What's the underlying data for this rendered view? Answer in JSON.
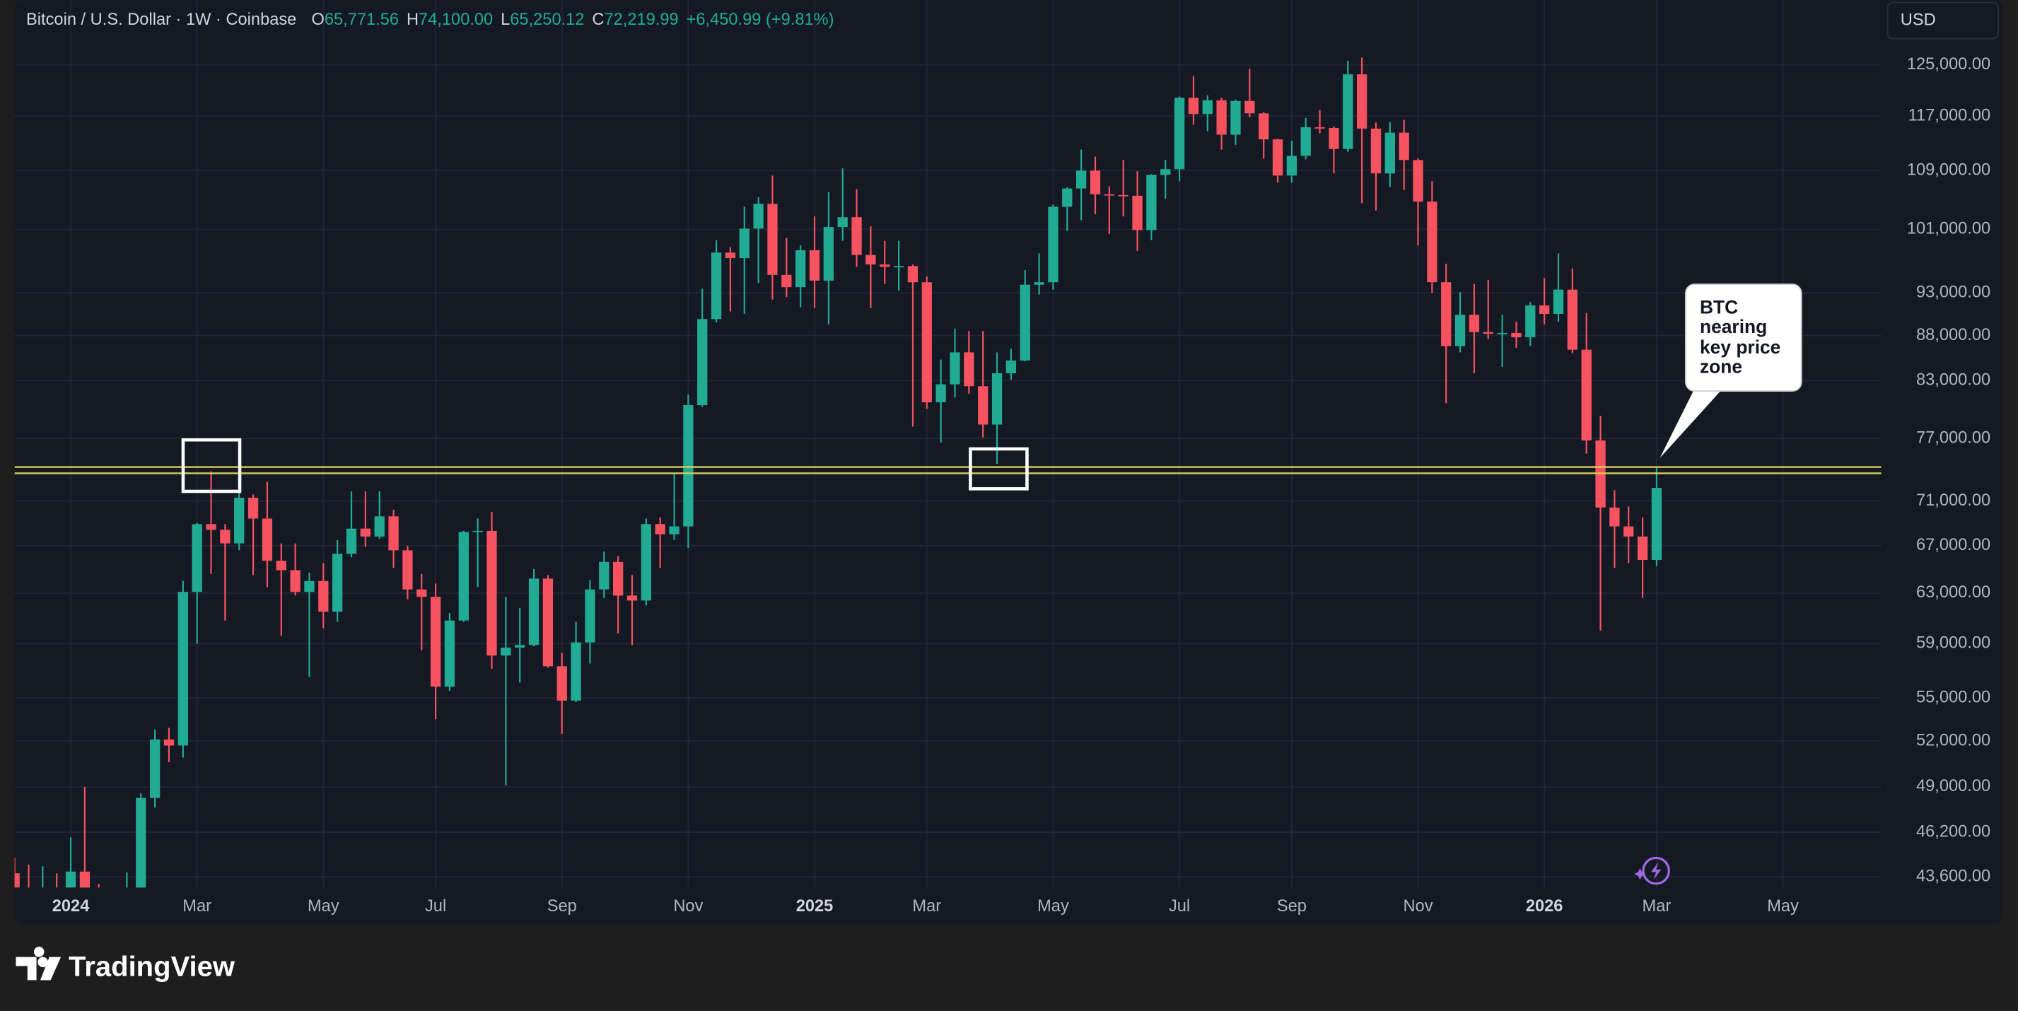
{
  "chart_data": {
    "type": "candlestick",
    "header": {
      "symbol": "Bitcoin / U.S. Dollar · 1W · Coinbase",
      "ohlc": [
        {
          "label": "O",
          "value": "65,771.56"
        },
        {
          "label": "H",
          "value": "74,100.00"
        },
        {
          "label": "L",
          "value": "65,250.12"
        },
        {
          "label": "C",
          "value": "72,219.99"
        }
      ],
      "change": "+6,450.99 (+9.81%)"
    },
    "currency": "USD",
    "annotation": [
      "BTC",
      "nearing",
      "key price",
      "zone"
    ],
    "brand": "TradingView",
    "log_scale": true,
    "grid": true,
    "up_color": "#22ab94",
    "down_color": "#f7525f",
    "level_color": "#d8cf55",
    "levels": [
      74200,
      73600
    ],
    "xlim": [
      0,
      133
    ],
    "xticks": [
      {
        "value": 4,
        "label": "2024"
      },
      {
        "value": 13,
        "label": "Mar"
      },
      {
        "value": 22,
        "label": "May"
      },
      {
        "value": 30,
        "label": "Jul"
      },
      {
        "value": 39,
        "label": "Sep"
      },
      {
        "value": 48,
        "label": "Nov"
      },
      {
        "value": 57,
        "label": "2025"
      },
      {
        "value": 65,
        "label": "Mar"
      },
      {
        "value": 74,
        "label": "May"
      },
      {
        "value": 83,
        "label": "Jul"
      },
      {
        "value": 91,
        "label": "Sep"
      },
      {
        "value": 100,
        "label": "Nov"
      },
      {
        "value": 109,
        "label": "2026"
      },
      {
        "value": 117,
        "label": "Mar"
      },
      {
        "value": 126,
        "label": "May"
      }
    ],
    "ylim": [
      43000,
      136000
    ],
    "yticks": [
      {
        "value": 125000,
        "label": "125,000.00"
      },
      {
        "value": 117000,
        "label": "117,000.00"
      },
      {
        "value": 109000,
        "label": "109,000.00"
      },
      {
        "value": 101000,
        "label": "101,000.00"
      },
      {
        "value": 93000,
        "label": "93,000.00"
      },
      {
        "value": 88000,
        "label": "88,000.00"
      },
      {
        "value": 83000,
        "label": "83,000.00"
      },
      {
        "value": 77000,
        "label": "77,000.00"
      },
      {
        "value": 71000,
        "label": "71,000.00"
      },
      {
        "value": 67000,
        "label": "67,000.00"
      },
      {
        "value": 63000,
        "label": "63,000.00"
      },
      {
        "value": 59000,
        "label": "59,000.00"
      },
      {
        "value": 55000,
        "label": "55,000.00"
      },
      {
        "value": 52000,
        "label": "52,000.00"
      },
      {
        "value": 49000,
        "label": "49,000.00"
      },
      {
        "value": 46200,
        "label": "46,200.00"
      },
      {
        "value": 43600,
        "label": "43,600.00"
      }
    ],
    "open": [
      43800,
      43000,
      42300,
      43000,
      42300,
      43900,
      41700,
      41600,
      42000,
      42600,
      48300,
      52100,
      51700,
      63100,
      68900,
      68400,
      67200,
      71300,
      69400,
      65700,
      64900,
      63100,
      64000,
      61500,
      66300,
      68500,
      67800,
      69600,
      66600,
      63300,
      62700,
      55800,
      60800,
      68200,
      68300,
      58100,
      58700,
      58900,
      64200,
      57300,
      54800,
      59100,
      63300,
      65600,
      62800,
      62400,
      68900,
      68000,
      68700,
      80400,
      89900,
      98000,
      97300,
      101100,
      104400,
      95200,
      93700,
      98300,
      94500,
      101300,
      102600,
      97700,
      96500,
      96200,
      96300,
      94300,
      80700,
      82600,
      86100,
      82400,
      78400,
      83800,
      85200,
      94000,
      94300,
      104000,
      106500,
      109000,
      105700,
      105600,
      105500,
      100900,
      108400,
      109200,
      119800,
      117300,
      119400,
      114200,
      119300,
      117400,
      113500,
      108300,
      111100,
      115300,
      115200,
      112100,
      123500,
      115100,
      108600,
      114500,
      110500,
      104700,
      94300,
      86800,
      90400,
      88400,
      88200,
      88300,
      87800,
      91500,
      90500,
      93400,
      86400,
      76800,
      70400,
      68700,
      67800,
      65771.56
    ],
    "high": [
      44700,
      44300,
      44200,
      43800,
      45900,
      49000,
      43200,
      42200,
      43850,
      48600,
      52800,
      52900,
      64000,
      69000,
      73800,
      68900,
      71800,
      71600,
      72800,
      67200,
      67200,
      64700,
      65500,
      67500,
      71900,
      71900,
      71900,
      70200,
      67000,
      64600,
      63800,
      61400,
      68300,
      69400,
      70000,
      62700,
      61800,
      65000,
      64500,
      58300,
      60700,
      64100,
      66500,
      66100,
      64500,
      69400,
      69500,
      73600,
      81500,
      93500,
      99600,
      98700,
      104000,
      105300,
      108300,
      99900,
      98900,
      102700,
      106000,
      109300,
      106400,
      101400,
      99500,
      99500,
      96500,
      95000,
      85300,
      88800,
      88500,
      88500,
      86100,
      86500,
      95800,
      97900,
      104300,
      106700,
      112000,
      111000,
      106800,
      110500,
      108900,
      108500,
      110500,
      120000,
      123200,
      120200,
      119800,
      119500,
      124400,
      117600,
      113600,
      113300,
      116700,
      117900,
      115400,
      125700,
      126200,
      116000,
      116100,
      116400,
      110700,
      107500,
      96600,
      93100,
      94100,
      94600,
      90400,
      89600,
      91900,
      94800,
      97900,
      96000,
      90600,
      79300,
      72000,
      70500,
      69500,
      74100
    ],
    "low": [
      40200,
      40600,
      40800,
      41500,
      40800,
      41500,
      40600,
      38500,
      41800,
      42300,
      47700,
      50600,
      50900,
      59000,
      64600,
      60800,
      66600,
      64500,
      63500,
      59600,
      62800,
      56500,
      60200,
      60700,
      66000,
      66900,
      67600,
      65100,
      62500,
      58500,
      53500,
      55500,
      60700,
      63500,
      57100,
      49100,
      56100,
      58800,
      57200,
      52500,
      54700,
      57500,
      62600,
      59800,
      58900,
      62000,
      65100,
      67500,
      66800,
      80200,
      89500,
      90800,
      90500,
      94200,
      92200,
      92500,
      91300,
      91200,
      89300,
      99500,
      96200,
      91200,
      94100,
      93300,
      78200,
      80000,
      76600,
      81200,
      81600,
      77100,
      74500,
      83100,
      85100,
      92800,
      93400,
      100800,
      102200,
      103000,
      100400,
      102700,
      98200,
      99600,
      105100,
      107500,
      115700,
      114700,
      112000,
      112700,
      116800,
      110700,
      107300,
      107300,
      110600,
      114400,
      108600,
      111700,
      104500,
      103500,
      106700,
      106300,
      98900,
      93000,
      80600,
      86100,
      83800,
      87600,
      84500,
      86600,
      86800,
      89300,
      89600,
      86000,
      75500,
      60000,
      65100,
      65500,
      62600,
      65250.12
    ],
    "close": [
      43000,
      42300,
      43000,
      42300,
      43900,
      41700,
      41600,
      42000,
      42600,
      48300,
      52100,
      51700,
      63100,
      68900,
      68400,
      67200,
      71300,
      69400,
      65700,
      64900,
      63100,
      64000,
      61500,
      66300,
      68500,
      67800,
      69600,
      66600,
      63300,
      62700,
      55800,
      60800,
      68200,
      68300,
      58100,
      58700,
      58900,
      64200,
      57300,
      54800,
      59100,
      63300,
      65600,
      62800,
      62400,
      68900,
      68000,
      68700,
      80400,
      89900,
      98000,
      97300,
      101100,
      104400,
      95200,
      93700,
      98300,
      94500,
      101300,
      102600,
      97700,
      96500,
      96200,
      96300,
      94300,
      80700,
      82600,
      86100,
      82400,
      78400,
      83800,
      85200,
      94000,
      94300,
      104000,
      106500,
      109000,
      105700,
      105600,
      105500,
      100900,
      108400,
      109200,
      119800,
      117300,
      119400,
      114200,
      119300,
      117400,
      113500,
      108300,
      111100,
      115300,
      115200,
      112100,
      123500,
      115100,
      108600,
      114500,
      110500,
      104700,
      94300,
      86800,
      90400,
      88400,
      88200,
      88300,
      87800,
      91500,
      90500,
      93400,
      86400,
      76800,
      70400,
      68700,
      67800,
      65769,
      72219.99
    ]
  }
}
